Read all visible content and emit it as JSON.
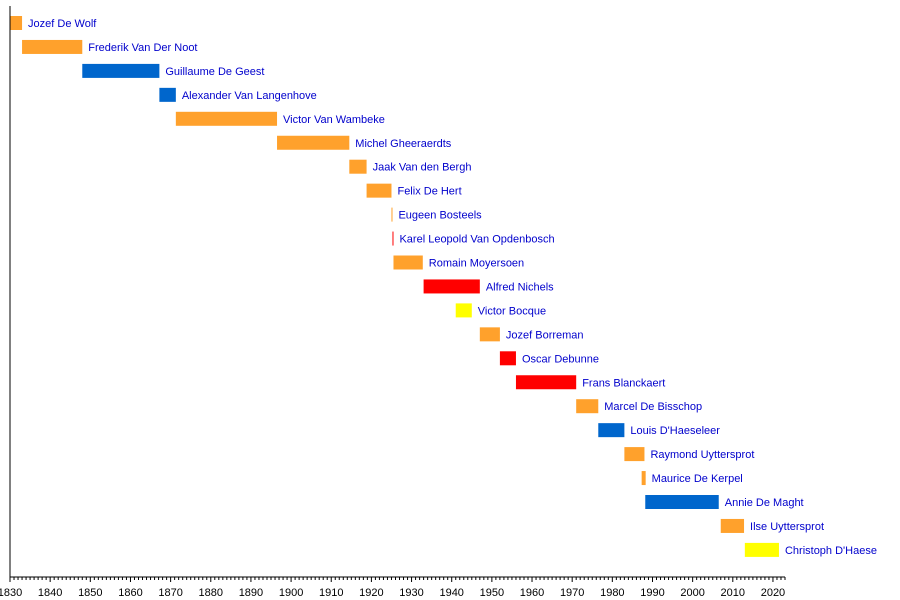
{
  "chart_data": {
    "type": "timeline",
    "title": "",
    "xlabel": "",
    "ylabel": "",
    "xlim": [
      1830,
      2023
    ],
    "x_ticks": [
      1830,
      1840,
      1850,
      1860,
      1870,
      1880,
      1890,
      1900,
      1910,
      1920,
      1930,
      1940,
      1950,
      1960,
      1970,
      1980,
      1990,
      2000,
      2010,
      2020
    ],
    "colors": {
      "orange": "#FFA12C",
      "blue": "#0066CC",
      "red": "#FF0000",
      "yellow": "#FFFF00",
      "label_text": "#0000CC",
      "axis": "#000000"
    },
    "mayors": [
      {
        "name": "Jozef De Wolf",
        "start": 1830,
        "end": 1833,
        "color": "orange"
      },
      {
        "name": "Frederik Van Der Noot",
        "start": 1833,
        "end": 1848,
        "color": "orange"
      },
      {
        "name": "Guillaume De Geest",
        "start": 1848,
        "end": 1867.2,
        "color": "blue"
      },
      {
        "name": "Alexander Van Langenhove",
        "start": 1867.2,
        "end": 1871.3,
        "color": "blue"
      },
      {
        "name": "Victor Van Wambeke",
        "start": 1871.3,
        "end": 1896.5,
        "color": "orange"
      },
      {
        "name": "Michel Gheeraerdts",
        "start": 1896.5,
        "end": 1914.5,
        "color": "orange"
      },
      {
        "name": "Jaak Van den Bergh",
        "start": 1914.5,
        "end": 1918.8,
        "color": "orange"
      },
      {
        "name": "Felix De Hert",
        "start": 1918.8,
        "end": 1925,
        "color": "orange"
      },
      {
        "name": "Eugeen Bosteels",
        "start": 1925,
        "end": 1925.25,
        "color": "orange"
      },
      {
        "name": "Karel Leopold Van Opdenbosch",
        "start": 1925.25,
        "end": 1925.5,
        "color": "red"
      },
      {
        "name": "Romain Moyersoen",
        "start": 1925.5,
        "end": 1932.8,
        "color": "orange"
      },
      {
        "name": "Alfred Nichels",
        "start": 1933,
        "end": 1947,
        "color": "red"
      },
      {
        "name": "Victor Bocque",
        "start": 1941,
        "end": 1945,
        "color": "yellow"
      },
      {
        "name": "Jozef Borreman",
        "start": 1947,
        "end": 1952,
        "color": "orange"
      },
      {
        "name": "Oscar Debunne",
        "start": 1952,
        "end": 1956,
        "color": "red"
      },
      {
        "name": "Frans Blanckaert",
        "start": 1956,
        "end": 1971,
        "color": "red"
      },
      {
        "name": "Marcel De Bisschop",
        "start": 1971,
        "end": 1976.5,
        "color": "orange"
      },
      {
        "name": "Louis D'Haeseleer",
        "start": 1976.5,
        "end": 1983,
        "color": "blue"
      },
      {
        "name": "Raymond Uyttersprot",
        "start": 1983,
        "end": 1988,
        "color": "orange"
      },
      {
        "name": "Maurice De Kerpel",
        "start": 1987.3,
        "end": 1988.3,
        "color": "orange"
      },
      {
        "name": "Annie De Maght",
        "start": 1988.2,
        "end": 2006.5,
        "color": "blue"
      },
      {
        "name": "Ilse Uyttersprot",
        "start": 2007,
        "end": 2012.8,
        "color": "orange"
      },
      {
        "name": "Christoph D'Haese",
        "start": 2013,
        "end": 2021.5,
        "color": "yellow"
      }
    ]
  }
}
